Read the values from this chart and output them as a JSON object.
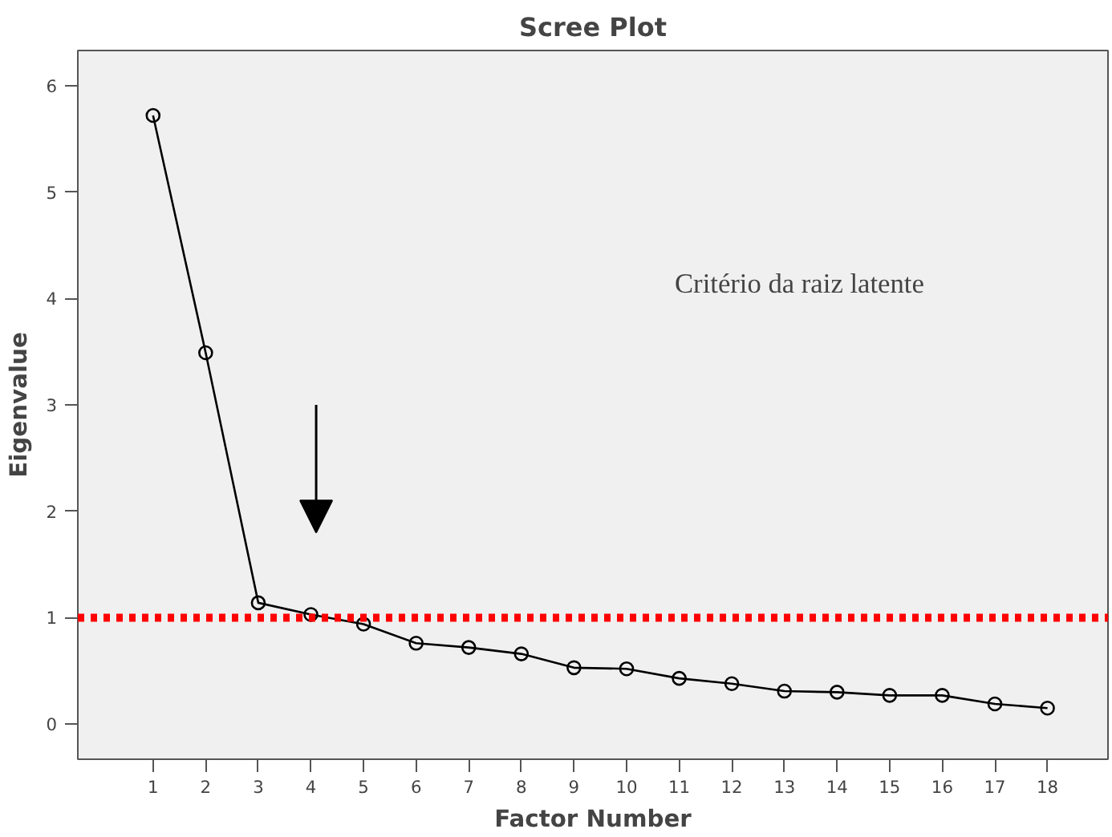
{
  "chart_data": {
    "type": "line",
    "title": "Scree Plot",
    "xlabel": "Factor Number",
    "ylabel": "Eigenvalue",
    "x": [
      1,
      2,
      3,
      4,
      5,
      6,
      7,
      8,
      9,
      10,
      11,
      12,
      13,
      14,
      15,
      16,
      17,
      18
    ],
    "series": [
      {
        "color": "#000000",
        "values": [
          5.72,
          3.49,
          1.14,
          1.03,
          0.94,
          0.76,
          0.72,
          0.66,
          0.53,
          0.52,
          0.43,
          0.38,
          0.31,
          0.3,
          0.27,
          0.27,
          0.19,
          0.15
        ]
      }
    ],
    "xlim": [
      -0.43,
      19.15
    ],
    "ylim": [
      -0.33,
      6.33
    ],
    "xticks": [
      1,
      2,
      3,
      4,
      5,
      6,
      7,
      8,
      9,
      10,
      11,
      12,
      13,
      14,
      15,
      16,
      17,
      18
    ],
    "yticks": [
      0,
      1,
      2,
      3,
      4,
      5,
      6
    ],
    "marker": "circle",
    "line_style": "solid",
    "grid": false,
    "ref_lines": [
      {
        "axis": "y",
        "value": 1,
        "color": "#ff0000",
        "line_style": "dotted"
      }
    ],
    "annotations": [
      "Critério da raiz latente"
    ]
  }
}
